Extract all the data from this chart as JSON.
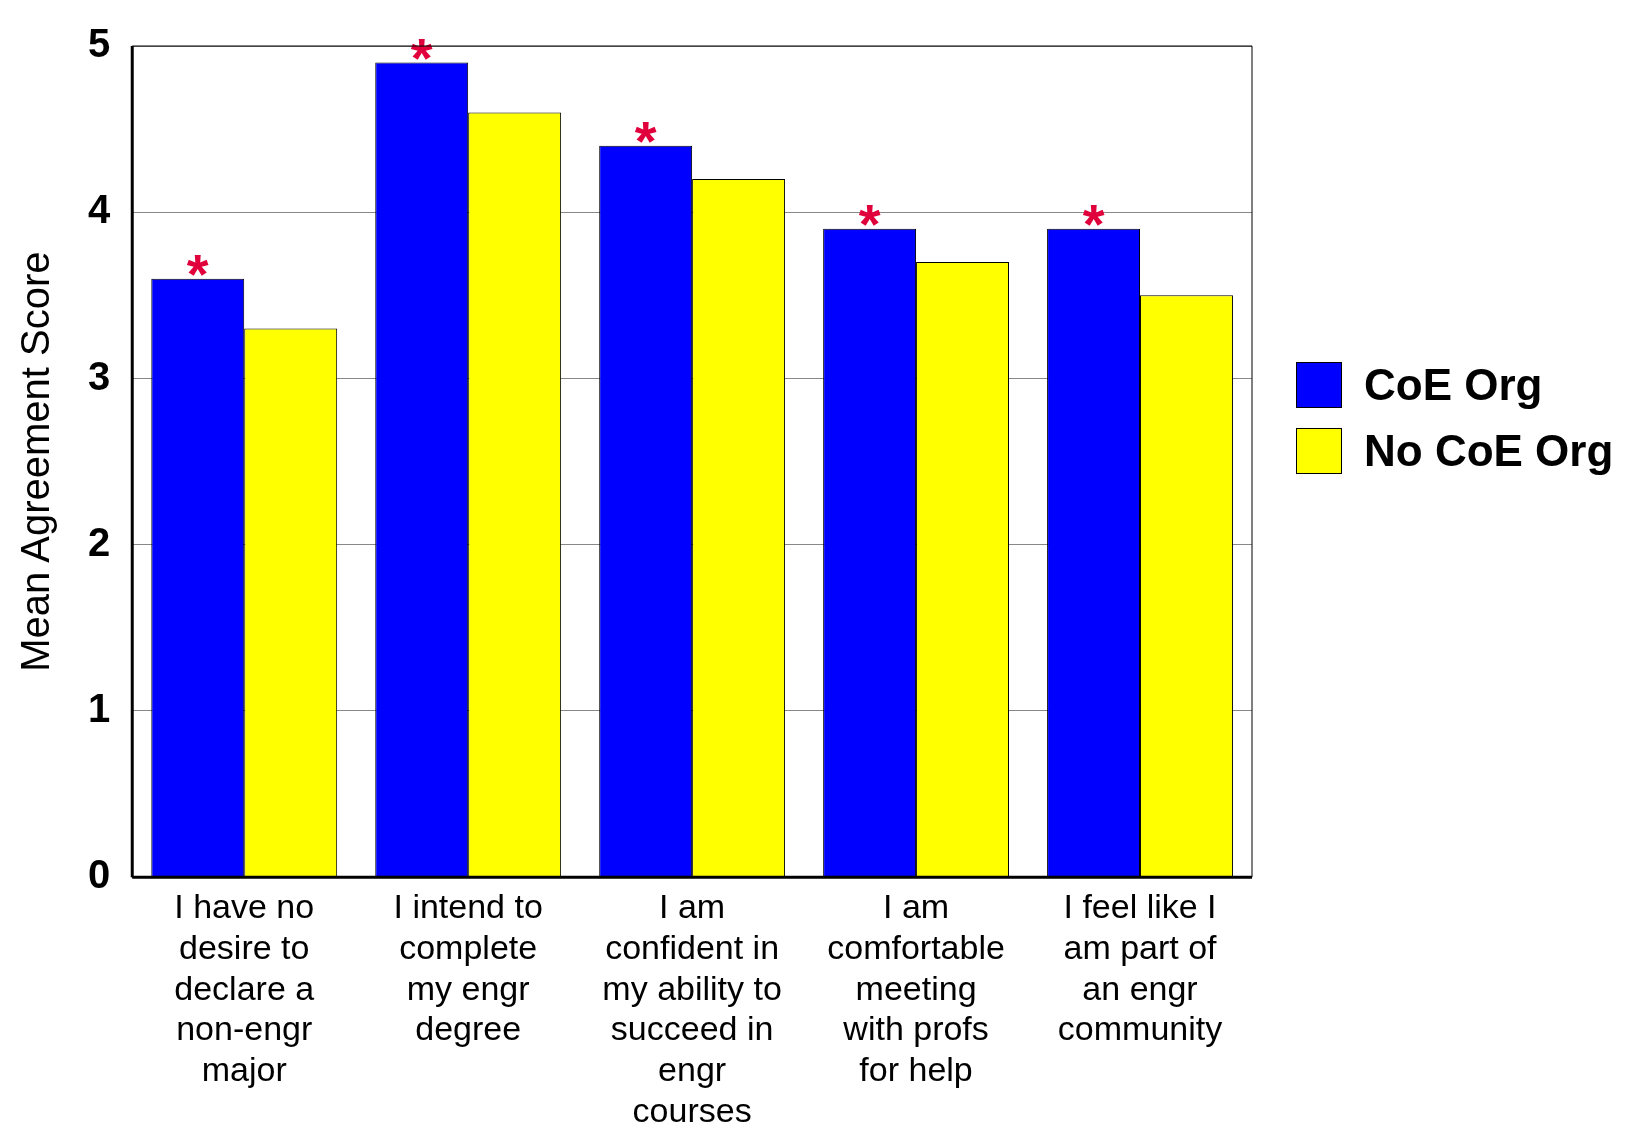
{
  "chart_data": {
    "type": "bar",
    "ylabel": "Mean Agreement Score",
    "categories": [
      "I have no desire to declare a non-engr major",
      "I intend to complete my engr degree",
      "I am confident in my ability to succeed in engr courses",
      "I am comfortable meeting with profs for help",
      "I feel like I am part of an engr community"
    ],
    "series": [
      {
        "name": "CoE Org",
        "color": "#0000ff",
        "values": [
          3.6,
          4.9,
          4.4,
          3.9,
          3.9
        ]
      },
      {
        "name": "No CoE Org",
        "color": "#ffff00",
        "values": [
          3.3,
          4.6,
          4.2,
          3.7,
          3.5
        ]
      }
    ],
    "ylim": [
      0,
      5
    ],
    "yticks": [
      0,
      1,
      2,
      3,
      4,
      5
    ],
    "grid": "y",
    "legend": "right",
    "annotations": [
      {
        "text": "*",
        "x": "I have no desire to declare a non-engr major",
        "y": 3.6
      },
      {
        "text": "*",
        "x": "I intend to complete my engr degree",
        "y": 4.9
      },
      {
        "text": "*",
        "x": "I am confident in my ability to succeed in engr courses",
        "y": 4.4
      },
      {
        "text": "*",
        "x": "I am comfortable meeting with profs for help",
        "y": 3.9
      },
      {
        "text": "*",
        "x": "I feel like I am part of an engr community",
        "y": 3.9
      }
    ]
  }
}
